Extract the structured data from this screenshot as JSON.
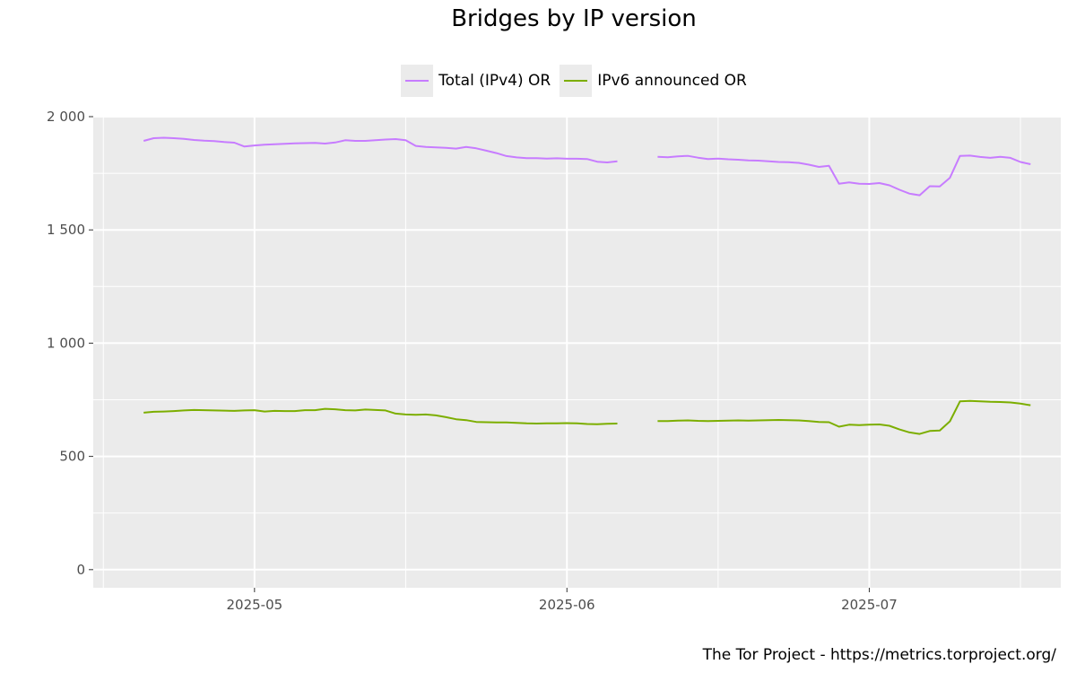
{
  "chart_data": {
    "type": "line",
    "title": "Bridges by IP version",
    "xlabel": "",
    "ylabel": "",
    "x_range": [
      "2025-04-15",
      "2025-07-20"
    ],
    "ylim": [
      -80,
      2000
    ],
    "y_ticks": [
      0,
      500,
      1000,
      1500,
      2000
    ],
    "y_tick_labels": [
      "0",
      "500",
      "1 000",
      "1 500",
      "2 000"
    ],
    "x_ticks": [
      "2025-05-01",
      "2025-06-01",
      "2025-07-01"
    ],
    "x_tick_labels": [
      "2025-05",
      "2025-06",
      "2025-07"
    ],
    "x_minor_ticks": [
      "2025-04-16",
      "2025-05-16",
      "2025-06-16",
      "2025-07-16"
    ],
    "grid": true,
    "legend_position": "top",
    "series": [
      {
        "name": "Total (IPv4) OR",
        "color": "#c77cff",
        "segments": [
          {
            "start": "2025-04-20",
            "values": [
              1893,
              1905,
              1907,
              1905,
              1902,
              1897,
              1894,
              1892,
              1888,
              1885,
              1868,
              1873,
              1876,
              1878,
              1880,
              1882,
              1883,
              1884,
              1881,
              1886,
              1896,
              1893,
              1893,
              1896,
              1899,
              1901,
              1896,
              1871,
              1866,
              1864,
              1862,
              1859,
              1866,
              1860,
              1850,
              1839,
              1826,
              1820,
              1817,
              1817,
              1815,
              1816,
              1814,
              1814,
              1813,
              1801,
              1798,
              1803
            ]
          },
          {
            "start": "2025-06-10",
            "values": [
              1823,
              1821,
              1825,
              1827,
              1819,
              1813,
              1815,
              1812,
              1810,
              1807,
              1806,
              1803,
              1800,
              1799,
              1796,
              1788,
              1778,
              1783,
              1704,
              1710,
              1704,
              1703,
              1707,
              1697,
              1677,
              1660,
              1653,
              1693,
              1692,
              1730,
              1827,
              1828,
              1822,
              1818,
              1823,
              1818,
              1800,
              1790
            ]
          }
        ]
      },
      {
        "name": "IPv6 announced OR",
        "color": "#7cae00",
        "segments": [
          {
            "start": "2025-04-20",
            "values": [
              693,
              697,
              698,
              700,
              703,
              705,
              704,
              703,
              702,
              701,
              703,
              704,
              698,
              701,
              700,
              700,
              704,
              704,
              710,
              708,
              704,
              703,
              707,
              705,
              703,
              689,
              685,
              684,
              685,
              681,
              673,
              664,
              660,
              652,
              651,
              650,
              650,
              648,
              646,
              645,
              646,
              646,
              647,
              646,
              643,
              642,
              644,
              645
            ]
          },
          {
            "start": "2025-06-10",
            "values": [
              656,
              656,
              658,
              659,
              657,
              656,
              657,
              658,
              659,
              658,
              659,
              660,
              661,
              660,
              659,
              656,
              652,
              651,
              631,
              640,
              638,
              640,
              641,
              635,
              619,
              606,
              599,
              612,
              614,
              655,
              743,
              745,
              743,
              741,
              740,
              738,
              733,
              726
            ]
          }
        ]
      }
    ]
  },
  "footer": {
    "credit": "The Tor Project - https://metrics.torproject.org/"
  }
}
